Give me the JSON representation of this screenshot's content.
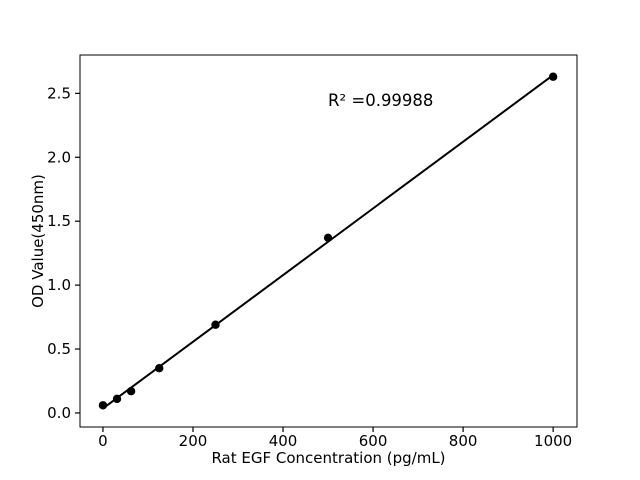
{
  "figure": {
    "background": "#ffffff",
    "foreground": "#000000"
  },
  "chart_data": {
    "type": "scatter",
    "title": "",
    "xlabel": "Rat EGF Concentration (pg/mL)",
    "ylabel": "OD Value(450nm)",
    "annotation": {
      "text": "R² =0.99988",
      "x": 500,
      "y": 2.4
    },
    "x": [
      0,
      31.25,
      62.5,
      125,
      250,
      500,
      1000
    ],
    "y": [
      0.06,
      0.11,
      0.17,
      0.35,
      0.69,
      1.37,
      2.63
    ],
    "fit_line": {
      "x": [
        0,
        1000
      ],
      "y": [
        0.035,
        2.643
      ],
      "slope": 0.00261,
      "intercept": 0.035
    },
    "xlim": [
      -51,
      1053
    ],
    "ylim": [
      -0.11,
      2.8
    ],
    "xticks": {
      "values": [
        0,
        200,
        400,
        600,
        800,
        1000
      ],
      "labels": [
        "0",
        "200",
        "400",
        "600",
        "800",
        "1000"
      ]
    },
    "yticks": {
      "values": [
        0,
        0.5,
        1,
        1.5,
        2,
        2.5
      ],
      "labels": [
        "0.0",
        "0.5",
        "1.0",
        "1.5",
        "2.0",
        "2.5"
      ]
    },
    "grid": false,
    "legend": null,
    "marker": {
      "shape": "circle",
      "color": "#000000",
      "radius": 4.2
    },
    "line": {
      "color": "#000000",
      "width": 2
    },
    "axis_color": "#000000"
  }
}
